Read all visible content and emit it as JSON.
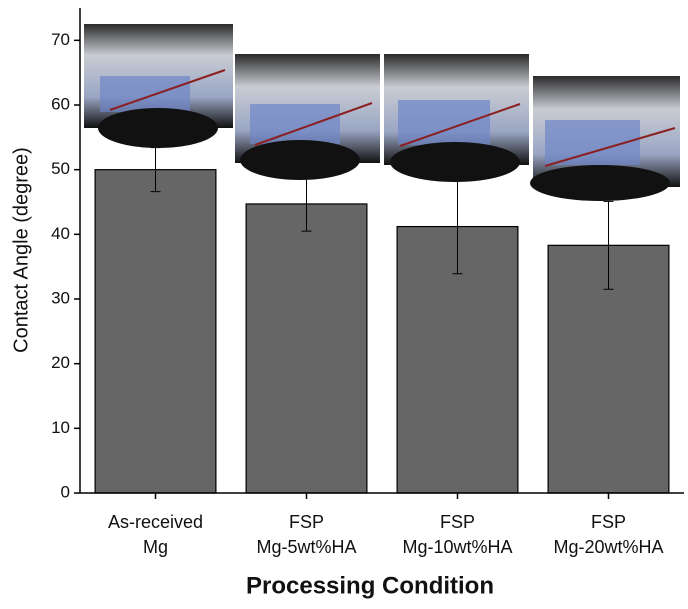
{
  "chart_data": {
    "type": "bar",
    "x_label": "Processing Condition",
    "y_label": "Contact Angle (degree)",
    "categories": [
      [
        "As-received",
        "Mg"
      ],
      [
        "FSP",
        "Mg-5wt%HA"
      ],
      [
        "FSP",
        "Mg-10wt%HA"
      ],
      [
        "FSP",
        "Mg-20wt%HA"
      ]
    ],
    "values": [
      50,
      44.7,
      41.2,
      38.3
    ],
    "errors": [
      3.4,
      4.2,
      7.3,
      6.8
    ],
    "color": "#666666",
    "ylim": [
      0,
      75
    ],
    "yticks": [
      0,
      10,
      20,
      30,
      40,
      50,
      60,
      70
    ]
  }
}
